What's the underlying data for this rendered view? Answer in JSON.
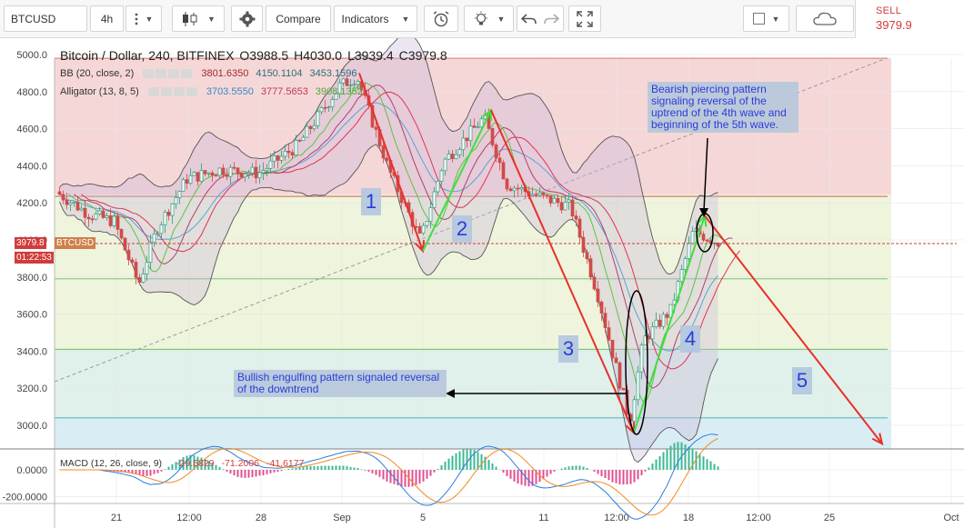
{
  "toolbar": {
    "symbol": "BTCUSD",
    "interval": "4h",
    "compare_label": "Compare",
    "indicators_label": "Indicators",
    "sell_label": "SELL",
    "sell_price": "3979.9"
  },
  "icons": {
    "more": "vertical-dots-icon",
    "candles": "candlestick-icon",
    "settings": "gear-icon",
    "alert": "alarm-clock-icon",
    "hint": "lightbulb-icon",
    "undo": "undo-icon",
    "redo": "redo-icon",
    "fullscreen": "fullscreen-icon",
    "color": "color-square-icon",
    "cloud": "cloud-icon"
  },
  "chart_title": {
    "name": "Bitcoin / Dollar, 240, BITFINEX",
    "open": "O3988.5",
    "high": "H4030.0",
    "low": "L3939.4",
    "close": "C3979.8"
  },
  "indicators": {
    "bb": {
      "label": "BB (20, close, 2)",
      "v1": "3801.6350",
      "v2": "4150.1104",
      "v3": "3453.1596"
    },
    "alligator": {
      "label": "Alligator (13, 8, 5)",
      "v1": "3703.5550",
      "v2": "3777.5653",
      "v3": "3908.1352"
    },
    "macd": {
      "label": "MACD (12, 26, close, 9)",
      "v1": "-29.5829",
      "v2": "-71.2006",
      "v3": "-41.6177"
    }
  },
  "price_tags": {
    "last_price": "3979.8",
    "last_symbol": "BTCUSD",
    "countdown": "01:22:53"
  },
  "annotations": {
    "bearish": "Bearish piercing pattern signaling reversal of the uptrend of the 4th wave and beginning of the 5th wave.",
    "bullish": "Bullish engulfing pattern signaled reversal of the downtrend",
    "waves": [
      "1",
      "2",
      "3",
      "4",
      "5"
    ]
  },
  "colors": {
    "up": "#2e9c7b",
    "down": "#d14b4b",
    "zone_top": "#f6d7d7",
    "zone_mid": "#eef5dc",
    "zone_low": "#dff1ea",
    "zone_bottom": "#d9eef4",
    "red_arrow": "#e8302a",
    "green_arrow": "#3ee03e",
    "bb_fill": "#c9b5d9",
    "note_text": "#1a2fd8"
  },
  "chart_data": [
    {
      "type": "candlestick",
      "title": "Bitcoin / Dollar, 240, BITFINEX",
      "y_ticks": [
        5000,
        4800,
        4600,
        4400,
        4200,
        4000,
        3800,
        3600,
        3400,
        3200,
        3000
      ],
      "y_tick_labels": [
        "5000.0",
        "4800.0",
        "4600.0",
        "4400.0",
        "4200.0",
        "4000.0",
        "3800.0",
        "3600.0",
        "3400.0",
        "3200.0",
        "3000.0"
      ],
      "ylim": [
        2870,
        5060
      ],
      "x_tick_labels": [
        "21",
        "12:00",
        "28",
        "Sep",
        "5",
        "11",
        "12:00",
        "18",
        "12:00",
        "25",
        "Oct"
      ],
      "last_price": 3979.8,
      "fib_levels": [
        4980,
        4235,
        3790,
        3410,
        3040
      ],
      "wave_path": [
        {
          "t": 0.0,
          "p": 4900,
          "w": "start"
        },
        {
          "t": 1.0,
          "p": 3940,
          "w": "1"
        },
        {
          "t": 2.0,
          "p": 4700,
          "w": "2"
        },
        {
          "t": 3.0,
          "p": 2960,
          "w": "3"
        },
        {
          "t": 4.0,
          "p": 4130,
          "w": "4"
        },
        {
          "t": 5.0,
          "p": 2900,
          "w": "5"
        }
      ],
      "grid": true
    },
    {
      "type": "line",
      "title": "MACD (12, 26, close, 9)",
      "y_ticks": [
        0,
        -200
      ],
      "y_tick_labels": [
        "0.0000",
        "-200.0000"
      ],
      "ylim": [
        -255,
        95
      ]
    }
  ]
}
